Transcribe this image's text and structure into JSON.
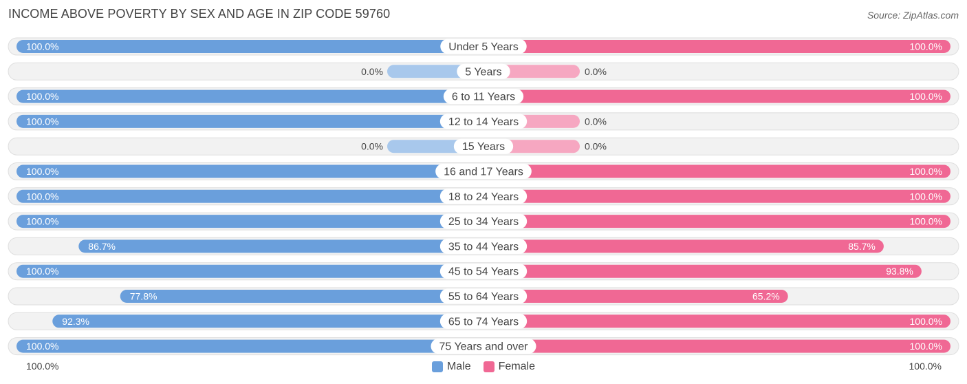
{
  "header": {
    "title": "INCOME ABOVE POVERTY BY SEX AND AGE IN ZIP CODE 59760",
    "source": "Source: ZipAtlas.com"
  },
  "colors": {
    "male_full": "#6a9fdc",
    "male_light": "#a8c8ec",
    "female_full": "#f06894",
    "female_light": "#f6a7c1",
    "row_bg": "#f2f2f2",
    "row_border": "#dedede"
  },
  "legend": {
    "male": "Male",
    "female": "Female"
  },
  "axis": {
    "left": "100.0%",
    "right": "100.0%"
  },
  "chart_data": {
    "type": "bar",
    "title": "INCOME ABOVE POVERTY BY SEX AND AGE IN ZIP CODE 59760",
    "orientation": "horizontal-diverging",
    "xlim": [
      0,
      100
    ],
    "legend_position": "bottom",
    "categories": [
      "Under 5 Years",
      "5 Years",
      "6 to 11 Years",
      "12 to 14 Years",
      "15 Years",
      "16 and 17 Years",
      "18 to 24 Years",
      "25 to 34 Years",
      "35 to 44 Years",
      "45 to 54 Years",
      "55 to 64 Years",
      "65 to 74 Years",
      "75 Years and over"
    ],
    "series": [
      {
        "name": "Male",
        "values": [
          100.0,
          0.0,
          100.0,
          100.0,
          0.0,
          100.0,
          100.0,
          100.0,
          86.7,
          100.0,
          77.8,
          92.3,
          100.0
        ],
        "labels": [
          "100.0%",
          "0.0%",
          "100.0%",
          "100.0%",
          "0.0%",
          "100.0%",
          "100.0%",
          "100.0%",
          "86.7%",
          "100.0%",
          "77.8%",
          "92.3%",
          "100.0%"
        ]
      },
      {
        "name": "Female",
        "values": [
          100.0,
          0.0,
          100.0,
          0.0,
          0.0,
          100.0,
          100.0,
          100.0,
          85.7,
          93.8,
          65.2,
          100.0,
          100.0
        ],
        "labels": [
          "100.0%",
          "0.0%",
          "100.0%",
          "0.0%",
          "0.0%",
          "100.0%",
          "100.0%",
          "100.0%",
          "85.7%",
          "93.8%",
          "65.2%",
          "100.0%",
          "100.0%"
        ]
      }
    ]
  }
}
